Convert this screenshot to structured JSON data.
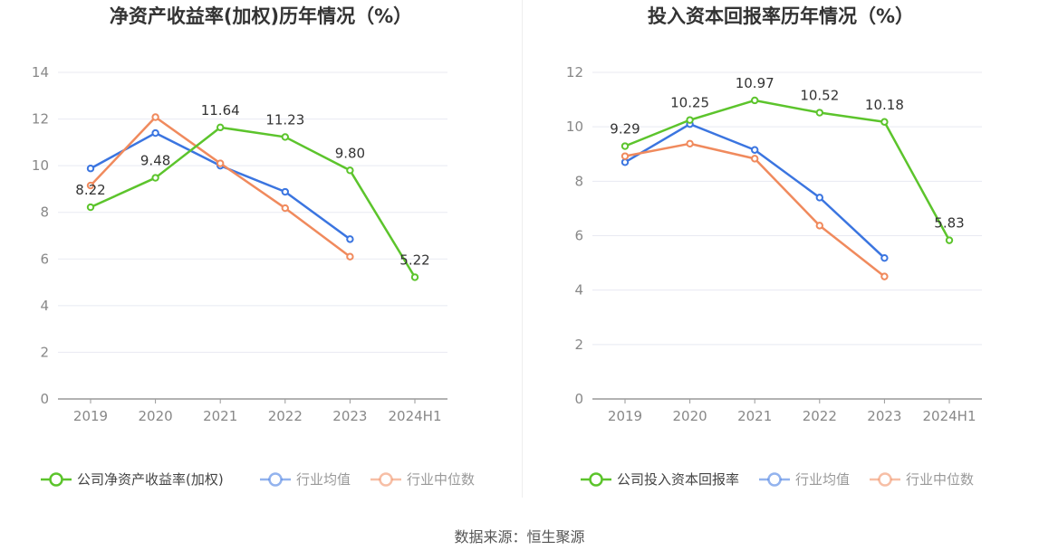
{
  "source": "数据来源：恒生聚源",
  "colors": {
    "company": "#5cc42c",
    "industry_avg": "#3b75e0",
    "industry_median": "#f08a5d",
    "grid": "#e8eaf2",
    "axis": "#999999"
  },
  "chart_data": [
    {
      "type": "line",
      "title": "净资产收益率(加权)历年情况（%）",
      "categories": [
        "2019",
        "2020",
        "2021",
        "2022",
        "2023",
        "2024H1"
      ],
      "yticks": [
        "0",
        "2",
        "4",
        "6",
        "8",
        "10",
        "12",
        "14"
      ],
      "ylim": [
        0,
        14
      ],
      "grid": true,
      "legend_position": "bottom",
      "series": [
        {
          "name": "公司净资产收益率(加权)",
          "color": "#5cc42c",
          "values": [
            8.22,
            9.48,
            11.64,
            11.23,
            9.8,
            5.22
          ],
          "labels": [
            "8.22",
            "9.48",
            "11.64",
            "11.23",
            "9.80",
            "5.22"
          ]
        },
        {
          "name": "行业均值",
          "color": "#3b75e0",
          "values": [
            9.88,
            11.4,
            10.0,
            8.88,
            6.85,
            null
          ]
        },
        {
          "name": "行业中位数",
          "color": "#f08a5d",
          "values": [
            9.15,
            12.08,
            10.1,
            8.18,
            6.1,
            null
          ]
        }
      ]
    },
    {
      "type": "line",
      "title": "投入资本回报率历年情况（%）",
      "categories": [
        "2019",
        "2020",
        "2021",
        "2022",
        "2023",
        "2024H1"
      ],
      "yticks": [
        "0",
        "2",
        "4",
        "6",
        "8",
        "10",
        "12"
      ],
      "ylim": [
        0,
        12
      ],
      "grid": true,
      "legend_position": "bottom",
      "series": [
        {
          "name": "公司投入资本回报率",
          "color": "#5cc42c",
          "values": [
            9.29,
            10.25,
            10.97,
            10.52,
            10.18,
            5.83
          ],
          "labels": [
            "9.29",
            "10.25",
            "10.97",
            "10.52",
            "10.18",
            "5.83"
          ]
        },
        {
          "name": "行业均值",
          "color": "#3b75e0",
          "values": [
            8.7,
            10.1,
            9.15,
            7.4,
            5.18,
            null
          ]
        },
        {
          "name": "行业中位数",
          "color": "#f08a5d",
          "values": [
            8.92,
            9.38,
            8.83,
            6.37,
            4.5,
            null
          ]
        }
      ]
    }
  ]
}
